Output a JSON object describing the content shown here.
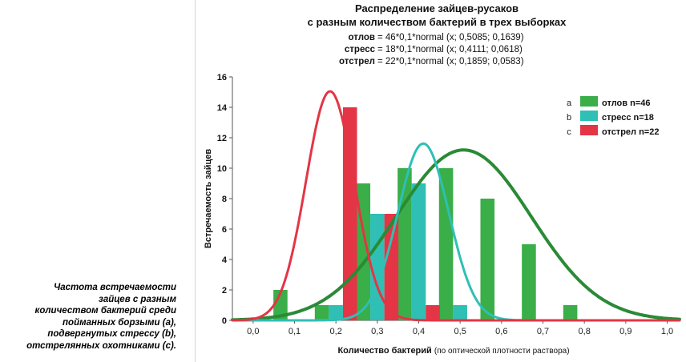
{
  "caption": {
    "lines": [
      "Частота встречаемости",
      "зайцев с разным",
      "количеством бактерий среди",
      "пойманных борзыми (a),",
      "подвергнутых стрессу (b),",
      "отстрелянных охотниками (c)."
    ]
  },
  "chart_data": {
    "type": "bar",
    "title": "Распределение зайцев-русаков",
    "subtitle": "с разным количеством бактерий в трех выборках",
    "formulas": [
      {
        "name": "отлов",
        "text": "= 46*0,1*normal (x; 0,5085; 0,1639)"
      },
      {
        "name": "стресс",
        "text": "= 18*0,1*normal (x; 0,4111; 0,0618)"
      },
      {
        "name": "отстрел",
        "text": "= 22*0,1*normal (x; 0,1859; 0,0583)"
      }
    ],
    "xlabel": "Количество бактерий",
    "xlabel_note": "(по оптической плотности раствора)",
    "ylabel": "Встречаемость зайцев",
    "xlim": [
      -0.05,
      1.03
    ],
    "ylim": [
      0,
      16
    ],
    "x_ticks": [
      0.0,
      0.1,
      0.2,
      0.3,
      0.4,
      0.5,
      0.6,
      0.7,
      0.8,
      0.9,
      1.0
    ],
    "x_tick_labels": [
      "0,0",
      "0,1",
      "0,2",
      "0,3",
      "0,4",
      "0,5",
      "0,6",
      "0,7",
      "0,8",
      "0,9",
      "1,0"
    ],
    "y_ticks": [
      0,
      2,
      4,
      6,
      8,
      10,
      12,
      14,
      16
    ],
    "y_tick_labels": [
      "0",
      "2",
      "4",
      "6",
      "8",
      "10",
      "12",
      "14",
      "16"
    ],
    "grid": false,
    "legend_position": "top-right",
    "series": [
      {
        "key": "a",
        "name": "отлов n=46",
        "color": "#3aae48",
        "curve_color": "#2a8a36",
        "n": 46,
        "mean": 0.5085,
        "sd": 0.1639,
        "x": [
          0.1,
          0.2,
          0.3,
          0.4,
          0.5,
          0.6,
          0.7,
          0.8
        ],
        "values": [
          2,
          1,
          9,
          10,
          10,
          8,
          5,
          1
        ]
      },
      {
        "key": "b",
        "name": "стресс n=18",
        "color": "#2fbfb5",
        "curve_color": "#2fbfb5",
        "n": 18,
        "mean": 0.4111,
        "sd": 0.0618,
        "x": [
          0.2,
          0.3,
          0.4,
          0.5
        ],
        "values": [
          1,
          7,
          9,
          1
        ]
      },
      {
        "key": "c",
        "name": "отстрел n=22",
        "color": "#e33545",
        "curve_color": "#e33545",
        "n": 22,
        "mean": 0.1859,
        "sd": 0.0583,
        "x": [
          0.1,
          0.2,
          0.3,
          0.4
        ],
        "values": [
          0,
          14,
          7,
          1
        ]
      }
    ]
  }
}
